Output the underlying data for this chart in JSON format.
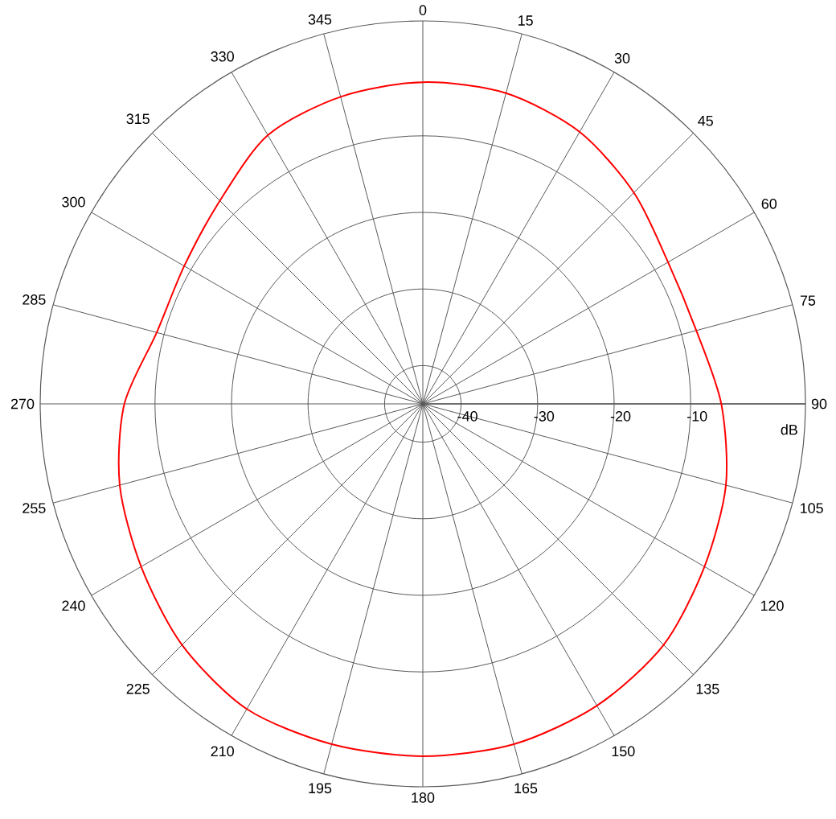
{
  "chart_data": {
    "type": "radar",
    "ylabel": "dB",
    "categories": [
      "0",
      "15",
      "30",
      "45",
      "60",
      "75",
      "90",
      "105",
      "120",
      "135",
      "150",
      "165",
      "180",
      "195",
      "210",
      "225",
      "240",
      "255",
      "270",
      "285",
      "300",
      "315",
      "330",
      "345"
    ],
    "series": [
      {
        "color": "#ff0000",
        "values": [
          -3,
          -3,
          -4,
          -6,
          -8,
          -8,
          -6,
          -4,
          -2.5,
          -0.5,
          0.5,
          1,
          1,
          1,
          1,
          -0.5,
          -2.5,
          -4,
          -6,
          -9,
          -9,
          -7.5,
          -4.5,
          -3.5
        ]
      }
    ],
    "ylim": [
      -45,
      5
    ],
    "yticks": [
      -40,
      -30,
      -20,
      -10
    ],
    "grid": true,
    "marker": "none",
    "line_style": "solid"
  }
}
